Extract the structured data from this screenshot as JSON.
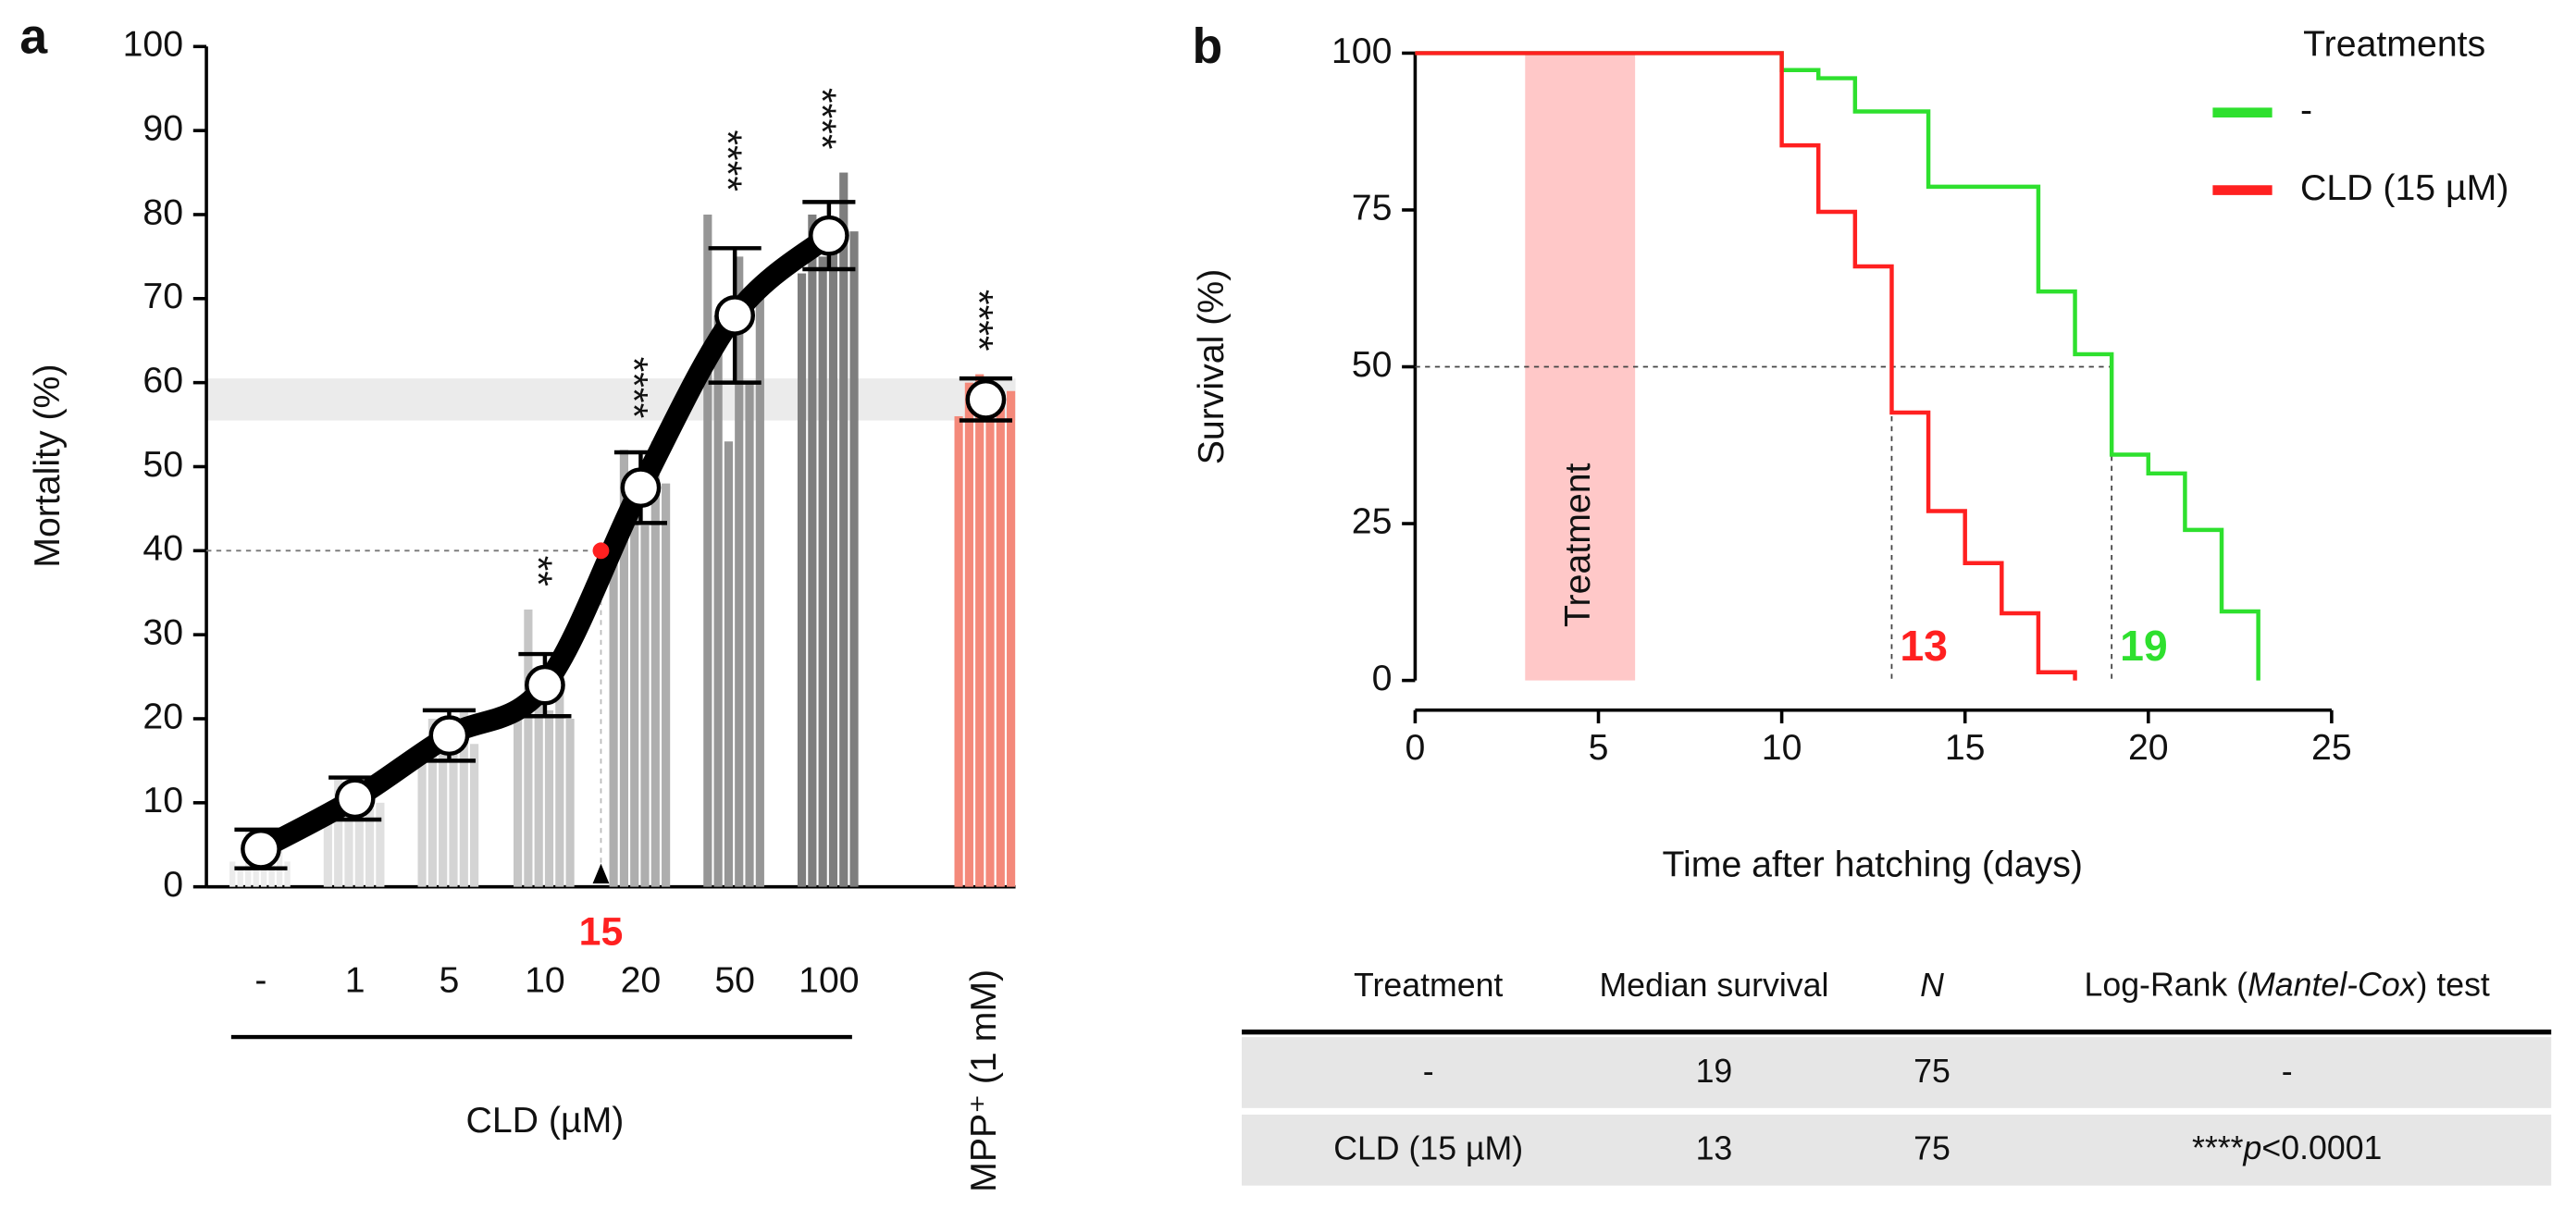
{
  "chart_data": [
    {
      "type": "bar",
      "panel": "a",
      "categories": [
        "-",
        "1",
        "5",
        "10",
        "20",
        "50",
        "100",
        "MPP⁺ (1 mM)"
      ],
      "values": [
        4.5,
        10.5,
        18,
        24,
        47.5,
        68,
        77.5,
        58
      ],
      "errors": [
        2.3,
        2.5,
        3,
        3.7,
        4.2,
        8,
        4,
        2.5
      ],
      "replicates": [
        [
          3,
          2,
          7,
          3,
          2,
          5,
          6,
          3
        ],
        [
          9,
          13,
          11,
          8,
          12,
          10
        ],
        [
          15,
          20,
          18,
          16,
          21,
          17
        ],
        [
          20,
          33,
          22,
          21,
          27,
          20
        ],
        [
          40,
          52,
          44,
          43,
          53,
          48
        ],
        [
          80,
          68,
          53,
          75,
          60,
          70
        ],
        [
          73,
          80,
          75,
          77,
          85,
          78
        ],
        [
          56,
          60,
          61,
          58,
          57,
          59
        ]
      ],
      "colors": [
        "#ececec",
        "#e0e0e0",
        "#d4d4d4",
        "#c6c6c6",
        "#aeaeae",
        "#969696",
        "#7e7e7e",
        "#f4897a"
      ],
      "significance": [
        null,
        null,
        null,
        "**",
        "****",
        "****",
        "****",
        "****"
      ],
      "reference": {
        "label": "15",
        "value": 40,
        "color": "#ff2020"
      },
      "y_label": "Mortality (%)",
      "x_label": "CLD (µM)",
      "ylim": [
        0,
        100
      ],
      "yticks": [
        0,
        10,
        20,
        30,
        40,
        50,
        60,
        70,
        80,
        90,
        100
      ]
    },
    {
      "type": "line",
      "step": true,
      "panel": "b",
      "series": [
        {
          "name": "-",
          "color": "#2ee02e",
          "x": [
            0,
            10,
            11,
            12,
            14,
            17,
            18,
            19,
            20,
            21,
            22,
            23
          ],
          "values": [
            100,
            97.3,
            96,
            90.7,
            78.7,
            62,
            52,
            36,
            33,
            24,
            11,
            0
          ],
          "median": 19
        },
        {
          "name": "CLD (15 µM)",
          "color": "#ff2020",
          "x": [
            0,
            10,
            11,
            12,
            13,
            14,
            15,
            16,
            17,
            18
          ],
          "values": [
            100,
            85.3,
            74.7,
            66,
            42.7,
            27,
            18.7,
            10.7,
            1.3,
            0
          ],
          "median": 13
        }
      ],
      "median_level": 50,
      "treatment": {
        "label": "Treatment",
        "start": 3,
        "end": 6,
        "color": "#ffc8c8"
      },
      "legend_title": "Treatments",
      "legend": "top-right",
      "x_label": "Time after hatching (days)",
      "y_label": "Survival (%)",
      "xlim": [
        0,
        25
      ],
      "xticks": [
        0,
        5,
        10,
        15,
        20,
        25
      ],
      "ylim": [
        0,
        100
      ],
      "yticks": [
        0,
        25,
        50,
        75,
        100
      ]
    }
  ],
  "table": {
    "header": [
      "Treatment",
      "Median survival",
      "N",
      [
        "Log-Rank (",
        "Mantel-Cox",
        ") test"
      ]
    ],
    "rows": [
      [
        "-",
        "19",
        "75",
        "-"
      ],
      [
        "CLD (15 µM)",
        "13",
        "75",
        [
          "****",
          "p",
          "<0.0001"
        ]
      ]
    ]
  }
}
